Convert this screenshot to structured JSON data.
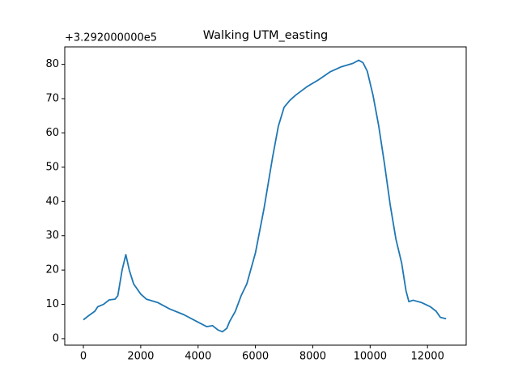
{
  "chart_data": {
    "type": "line",
    "title": "Walking UTM_easting",
    "offset_text": "+3.292000000e5",
    "x": [
      0,
      200,
      400,
      500,
      700,
      900,
      1100,
      1200,
      1350,
      1480,
      1600,
      1750,
      2000,
      2200,
      2600,
      3000,
      3500,
      4000,
      4300,
      4500,
      4700,
      4850,
      5000,
      5100,
      5300,
      5500,
      5700,
      6000,
      6300,
      6600,
      6800,
      7000,
      7200,
      7400,
      7800,
      8200,
      8600,
      9000,
      9400,
      9600,
      9750,
      9900,
      10100,
      10300,
      10500,
      10700,
      10900,
      11100,
      11250,
      11350,
      11500,
      11800,
      12100,
      12300,
      12450,
      12650
    ],
    "series": [
      {
        "color": "#1f77b4",
        "values": [
          5.5,
          6.8,
          8,
          9.3,
          10,
          11.3,
          11.5,
          12.5,
          20,
          24.5,
          20,
          16,
          13,
          11.5,
          10.5,
          8.7,
          7,
          4.8,
          3.5,
          3.8,
          2.5,
          2,
          3,
          5,
          8,
          12.5,
          16,
          25,
          38,
          53,
          62,
          67.5,
          69.5,
          71,
          73.5,
          75.5,
          77.8,
          79.3,
          80.3,
          81.2,
          80.5,
          78,
          71,
          62,
          51,
          39,
          29,
          22,
          14,
          10.8,
          11.2,
          10.5,
          9.3,
          8,
          6.2,
          5.8
        ]
      }
    ],
    "xlim": [
      -650,
      13350
    ],
    "xticks": [
      0,
      2000,
      4000,
      6000,
      8000,
      10000,
      12000
    ],
    "ylim": [
      -1.9,
      85.1
    ],
    "yticks": [
      0,
      10,
      20,
      30,
      40,
      50,
      60,
      70,
      80
    ]
  }
}
